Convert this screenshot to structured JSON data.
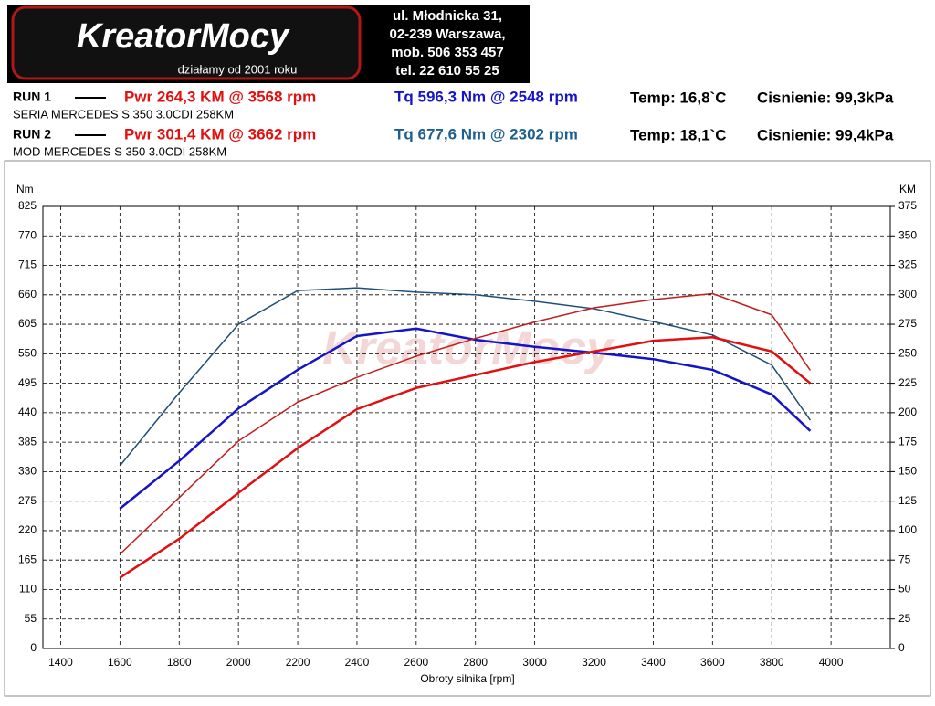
{
  "header": {
    "logo": "KreatorMocy",
    "tagline": "działamy od 2001 roku",
    "address": [
      "ul. Młodnicka 31,",
      "02-239  Warszawa,",
      "mob.  506 353 457",
      "tel.  22 610 55 25"
    ]
  },
  "runs": [
    {
      "label": "RUN 1",
      "power": "Pwr  264,3 KM @ 3568 rpm",
      "torque": "Tq 596,3 Nm @ 2548 rpm",
      "temp": "Temp: 16,8`C",
      "pressure": "Cisnienie: 99,3kPa",
      "description": "SERIA MERCEDES S 350 3.0CDI 258KM"
    },
    {
      "label": "RUN 2",
      "power": "Pwr  301,4 KM @ 3662 rpm",
      "torque": "Tq 677,6 Nm @ 2302 rpm",
      "temp": "Temp: 18,1`C",
      "pressure": "Cisnienie: 99,4kPa",
      "description": "MOD MERCEDES S 350 3.0CDI 258KM"
    }
  ],
  "chart_data": {
    "type": "line",
    "xlabel": "Obroty silnika [rpm]",
    "ylabel": "Nm",
    "y2label": "KM",
    "x": [
      1600,
      1800,
      2000,
      2200,
      2400,
      2600,
      2800,
      3000,
      3200,
      3400,
      3600,
      3800,
      3930
    ],
    "xlim": [
      1340,
      4200
    ],
    "xticks": [
      1400,
      1600,
      1800,
      2000,
      2200,
      2400,
      2600,
      2800,
      3000,
      3200,
      3400,
      3600,
      3800,
      4000
    ],
    "ylim": [
      0,
      825
    ],
    "yticks": [
      0,
      55,
      110,
      165,
      220,
      275,
      330,
      385,
      440,
      495,
      550,
      605,
      660,
      715,
      770,
      825
    ],
    "y2lim": [
      0,
      375
    ],
    "y2ticks": [
      0,
      25,
      50,
      75,
      100,
      125,
      150,
      175,
      200,
      225,
      250,
      275,
      300,
      325,
      350,
      375
    ],
    "grid": true,
    "series": [
      {
        "color": "#1414c8",
        "width": 2.5,
        "values": [
          261,
          350,
          448,
          520,
          583,
          597,
          576,
          563,
          552,
          540,
          520,
          474,
          406
        ]
      },
      {
        "color": "#1f4e79",
        "width": 1.5,
        "values": [
          341,
          477,
          605,
          668,
          673,
          665,
          660,
          648,
          634,
          610,
          585,
          529,
          426
        ]
      },
      {
        "color": "#e01010",
        "width": 2.5,
        "axis": "y2",
        "values": [
          60,
          93,
          132,
          170,
          203,
          221,
          232,
          243,
          252,
          261,
          264,
          252,
          225
        ]
      },
      {
        "color": "#c41c1c",
        "width": 1.5,
        "axis": "y2",
        "values": [
          80,
          128,
          176,
          209,
          230,
          248,
          263,
          277,
          289,
          296,
          301,
          283,
          236
        ]
      }
    ]
  }
}
